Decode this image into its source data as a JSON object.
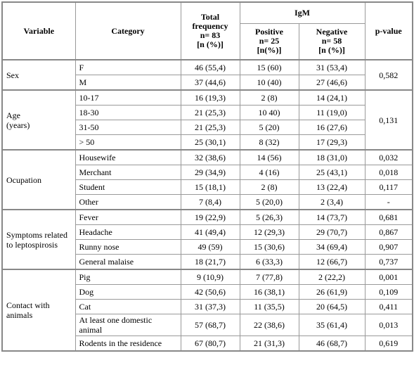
{
  "header": {
    "variable": "Variable",
    "category": "Category",
    "total": [
      "Total",
      "frequency",
      "n= 83",
      "[n (%)]"
    ],
    "igm": "IgM",
    "positive": [
      "Positive",
      "n= 25",
      "[n(%)]"
    ],
    "negative": [
      "Negative",
      "n= 58",
      "[n (%)]"
    ],
    "pvalue": "p-value"
  },
  "groups": [
    {
      "variable": [
        "Sex"
      ],
      "pvalue": "0,582",
      "rows": [
        [
          "F",
          "46 (55,4)",
          "15 (60)",
          "31 (53,4)"
        ],
        [
          "M",
          "37 (44,6)",
          "10 (40)",
          "27 (46,6)"
        ]
      ]
    },
    {
      "variable": [
        "Age",
        "(years)"
      ],
      "pvalue": "0,131",
      "rows": [
        [
          "10-17",
          "16 (19,3)",
          "2 (8)",
          "14 (24,1)"
        ],
        [
          "18-30",
          "21 (25,3)",
          "10 40)",
          "11 (19,0)"
        ],
        [
          "31-50",
          "21 (25,3)",
          "5 (20)",
          "16 (27,6)"
        ],
        [
          "> 50",
          "25 (30,1)",
          "8 (32)",
          "17 (29,3)"
        ]
      ]
    },
    {
      "variable": [
        "Ocupation"
      ],
      "rows": [
        [
          "Housewife",
          "32 (38,6)",
          "14 (56)",
          "18 (31,0)",
          "0,032"
        ],
        [
          "Merchant",
          "29 (34,9)",
          "4 (16)",
          "25 (43,1)",
          "0,018"
        ],
        [
          "Student",
          "15 (18,1)",
          "2 (8)",
          "13 (22,4)",
          "0,117"
        ],
        [
          "Other",
          "7 (8,4)",
          "5 (20,0)",
          "2 (3,4)",
          "-"
        ]
      ]
    },
    {
      "variable": [
        "Symptoms related to leptospirosis"
      ],
      "rows": [
        [
          "Fever",
          "19 (22,9)",
          "5 (26,3)",
          "14 (73,7)",
          "0,681"
        ],
        [
          "Headache",
          "41 (49,4)",
          "12 (29,3)",
          "29 (70,7)",
          "0,867"
        ],
        [
          "Runny nose",
          "49 (59)",
          "15 (30,6)",
          "34 (69,4)",
          "0,907"
        ],
        [
          "General malaise",
          "18 (21,7)",
          "6 (33,3)",
          "12 (66,7)",
          "0,737"
        ]
      ]
    },
    {
      "variable": [
        "Contact with animals"
      ],
      "rows": [
        [
          "Pig",
          "9 (10,9)",
          "7 (77,8)",
          "2 (22,2)",
          "0,001"
        ],
        [
          "Dog",
          "42 (50,6)",
          "16 (38,1)",
          "26 (61,9)",
          "0,109"
        ],
        [
          "Cat",
          "31 (37,3)",
          "11 (35,5)",
          "20 (64,5)",
          "0,411"
        ],
        [
          "At least one domestic animal",
          "57 (68,7)",
          "22 (38,6)",
          "35 (61,4)",
          "0,013"
        ],
        [
          "Rodents in the residence",
          "67 (80,7)",
          "21 (31,3)",
          "46 (68,7)",
          "0,619"
        ]
      ]
    }
  ]
}
